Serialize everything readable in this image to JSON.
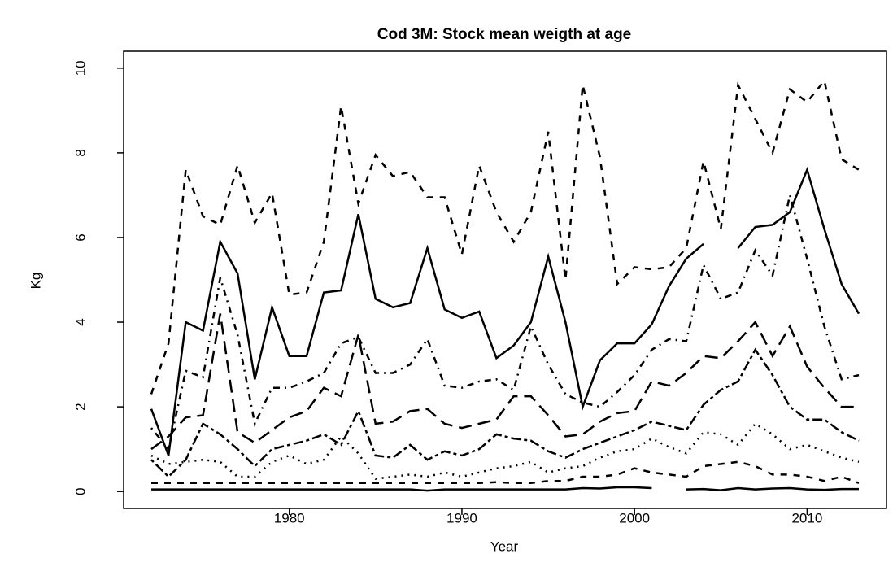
{
  "chart_data": {
    "type": "line",
    "title": "Cod 3M: Stock mean weigth at age",
    "xlabel": "Year",
    "ylabel": "Kg",
    "x": [
      1972,
      1973,
      1974,
      1975,
      1976,
      1977,
      1978,
      1979,
      1980,
      1981,
      1982,
      1983,
      1984,
      1985,
      1986,
      1987,
      1988,
      1989,
      1990,
      1991,
      1992,
      1993,
      1994,
      1995,
      1996,
      1997,
      1998,
      1999,
      2000,
      2001,
      2002,
      2003,
      2004,
      2005,
      2006,
      2007,
      2008,
      2009,
      2010,
      2011,
      2012,
      2013
    ],
    "xlim": [
      1970.4,
      2014.6
    ],
    "xticks": [
      1980,
      1990,
      2000,
      2010
    ],
    "ylim": [
      -0.4,
      10.4
    ],
    "yticks": [
      0,
      2,
      4,
      6,
      8,
      10
    ],
    "series": [
      {
        "color": "#000000",
        "linestyle": "solid",
        "values": [
          1.95,
          0.85,
          4.0,
          3.8,
          5.9,
          5.15,
          2.65,
          4.35,
          3.2,
          3.2,
          4.7,
          4.75,
          6.55,
          4.55,
          4.35,
          4.45,
          5.75,
          4.3,
          4.1,
          4.25,
          3.15,
          3.45,
          4.0,
          5.55,
          4.0,
          2.0,
          3.1,
          3.5,
          3.5,
          3.95,
          4.85,
          5.5,
          5.85,
          null,
          5.75,
          6.25,
          6.3,
          6.6,
          7.6,
          6.2,
          4.9,
          4.2
        ]
      },
      {
        "color": "#000000",
        "linestyle": "dashed",
        "values": [
          2.3,
          3.5,
          7.6,
          6.5,
          6.3,
          7.7,
          6.35,
          7.05,
          4.65,
          4.7,
          5.9,
          9.1,
          6.8,
          7.95,
          7.45,
          7.55,
          6.95,
          6.95,
          5.6,
          7.7,
          6.6,
          5.9,
          6.6,
          8.5,
          5.0,
          9.6,
          7.9,
          4.9,
          5.3,
          5.25,
          5.3,
          5.75,
          7.8,
          6.2,
          9.6,
          8.8,
          8.0,
          9.5,
          9.2,
          9.7,
          7.85,
          7.6
        ]
      },
      {
        "color": "#000000",
        "linestyle": "dotdash",
        "values": [
          1.5,
          1.0,
          2.85,
          2.7,
          5.05,
          3.7,
          1.6,
          2.45,
          2.45,
          2.6,
          2.8,
          3.5,
          3.65,
          2.8,
          2.8,
          3.0,
          3.6,
          2.5,
          2.45,
          2.6,
          2.65,
          2.4,
          3.9,
          3.0,
          2.3,
          2.1,
          2.0,
          2.35,
          2.75,
          3.35,
          3.6,
          3.55,
          5.35,
          4.55,
          4.7,
          5.7,
          5.1,
          7.0,
          5.5,
          3.9,
          2.65,
          2.75
        ]
      },
      {
        "color": "#000000",
        "linestyle": "longdash",
        "values": [
          1.0,
          1.3,
          1.75,
          1.8,
          4.2,
          1.4,
          1.15,
          1.45,
          1.75,
          1.9,
          2.45,
          2.25,
          3.7,
          1.6,
          1.65,
          1.9,
          1.95,
          1.6,
          1.5,
          1.6,
          1.7,
          2.25,
          2.25,
          1.8,
          1.3,
          1.35,
          1.65,
          1.85,
          1.9,
          2.6,
          2.5,
          2.8,
          3.2,
          3.15,
          3.55,
          4.0,
          3.2,
          3.9,
          2.95,
          2.45,
          2.0,
          2.0
        ]
      },
      {
        "color": "#000000",
        "linestyle": "twodash",
        "values": [
          0.75,
          0.35,
          0.75,
          1.6,
          1.35,
          1.0,
          0.6,
          1.0,
          1.1,
          1.2,
          1.35,
          1.1,
          1.9,
          0.85,
          0.8,
          1.1,
          0.75,
          0.95,
          0.85,
          1.0,
          1.35,
          1.25,
          1.2,
          0.95,
          0.8,
          1.0,
          1.15,
          1.3,
          1.45,
          1.65,
          1.55,
          1.45,
          2.05,
          2.4,
          2.6,
          3.35,
          2.75,
          2.0,
          1.7,
          1.7,
          1.4,
          1.2
        ]
      },
      {
        "color": "#000000",
        "linestyle": "dotted",
        "values": [
          0.85,
          0.65,
          0.7,
          0.75,
          0.7,
          0.35,
          0.35,
          0.7,
          0.85,
          0.65,
          0.75,
          1.3,
          0.9,
          0.3,
          0.35,
          0.4,
          0.35,
          0.45,
          0.35,
          0.45,
          0.55,
          0.6,
          0.7,
          0.45,
          0.55,
          0.6,
          0.8,
          0.95,
          1.0,
          1.25,
          1.05,
          0.9,
          1.4,
          1.35,
          1.1,
          1.6,
          1.35,
          1.0,
          1.1,
          0.95,
          0.8,
          0.7
        ]
      },
      {
        "color": "#000000",
        "linestyle": "dashed",
        "values": [
          0.2,
          0.2,
          0.2,
          0.2,
          0.2,
          0.2,
          0.2,
          0.2,
          0.2,
          0.2,
          0.2,
          0.2,
          0.2,
          0.2,
          0.2,
          0.2,
          0.2,
          0.2,
          0.2,
          0.2,
          0.22,
          0.2,
          0.2,
          0.25,
          0.25,
          0.35,
          0.35,
          0.4,
          0.55,
          0.45,
          0.4,
          0.35,
          0.6,
          0.65,
          0.7,
          0.6,
          0.4,
          0.4,
          0.35,
          0.25,
          0.35,
          0.2
        ]
      },
      {
        "color": "#000000",
        "linestyle": "solid",
        "values": [
          0.05,
          0.05,
          0.05,
          0.05,
          0.05,
          0.05,
          0.05,
          0.05,
          0.05,
          0.05,
          0.05,
          0.05,
          0.05,
          0.05,
          0.05,
          0.05,
          0.02,
          0.05,
          0.05,
          0.05,
          0.05,
          0.05,
          0.05,
          0.05,
          0.05,
          0.08,
          0.07,
          0.1,
          0.1,
          0.08,
          null,
          0.05,
          0.06,
          0.03,
          0.08,
          0.05,
          0.07,
          0.08,
          0.05,
          0.04,
          0.06,
          0.06
        ]
      }
    ]
  }
}
